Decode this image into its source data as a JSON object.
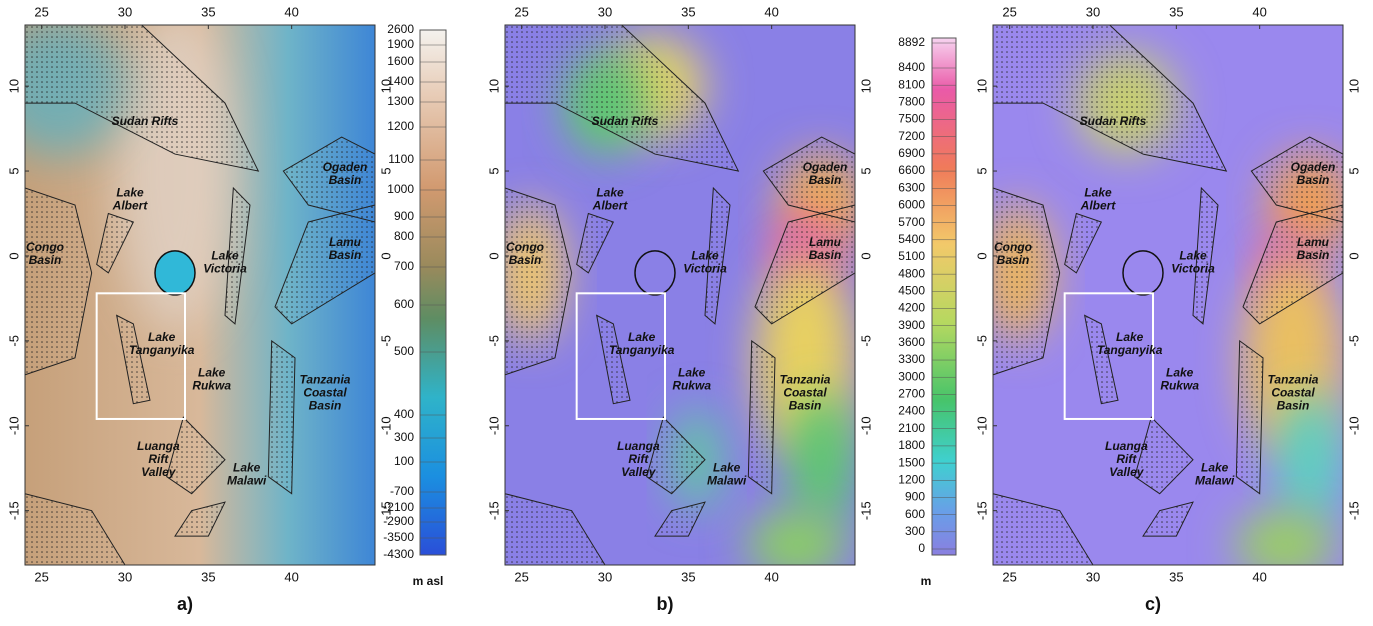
{
  "panels": [
    {
      "label": "a)",
      "unit": "m asl",
      "scale": [
        2600,
        1900,
        1600,
        1400,
        1300,
        1200,
        1100,
        1000,
        900,
        800,
        700,
        600,
        500,
        400,
        300,
        100,
        -700,
        -2100,
        -2900,
        -3500,
        -4300
      ]
    },
    {
      "label": "b)",
      "unit": "m",
      "scale": [
        8892,
        8400,
        8100,
        7800,
        7500,
        7200,
        6900,
        6600,
        6300,
        6000,
        5700,
        5400,
        5100,
        4800,
        4500,
        4200,
        3900,
        3600,
        3300,
        3000,
        2700,
        2400,
        2100,
        1800,
        1500,
        1200,
        900,
        600,
        300,
        0
      ]
    },
    {
      "label": "c)"
    }
  ],
  "lon_ticks": [
    25,
    30,
    35,
    40
  ],
  "lat_ticks": [
    10,
    5,
    0,
    -5,
    -10,
    -15
  ],
  "regions": [
    [
      "Sudan Rifts"
    ],
    [
      "Ogaden",
      "Basin"
    ],
    [
      "Lake",
      "Albert"
    ],
    [
      "Congo",
      "Basin"
    ],
    [
      "Lake",
      "Victoria"
    ],
    [
      "Lamu",
      "Basin"
    ],
    [
      "Lake",
      "Tanganyika"
    ],
    [
      "Lake",
      "Rukwa"
    ],
    [
      "Tanzania",
      "Coastal",
      "Basin"
    ],
    [
      "Luanga",
      "Rift",
      "Valley"
    ],
    [
      "Lake",
      "Malawi"
    ]
  ]
}
